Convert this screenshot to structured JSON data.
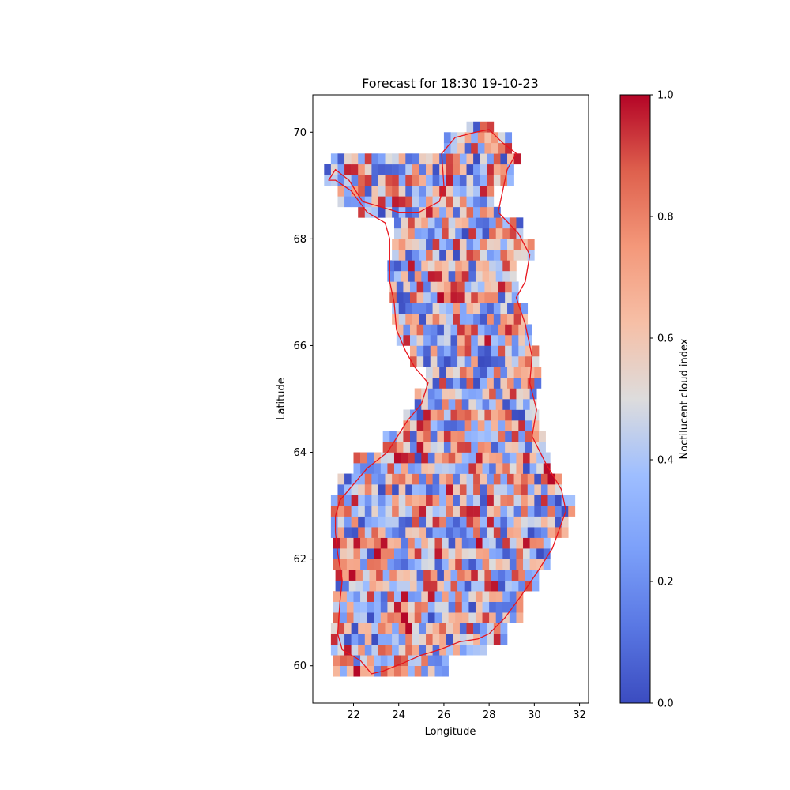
{
  "chart_data": {
    "type": "heatmap",
    "title": "Forecast for 18:30 19-10-23",
    "xlabel": "Longitude",
    "ylabel": "Latitude",
    "xlim": [
      20.2,
      32.4
    ],
    "ylim": [
      59.3,
      70.7
    ],
    "xticks": [
      22,
      24,
      26,
      28,
      30,
      32
    ],
    "yticks": [
      60,
      62,
      64,
      66,
      68,
      70
    ],
    "colorbar": {
      "label": "Noctilucent cloud index",
      "colormap": "coolwarm",
      "range": [
        0.0,
        1.0
      ],
      "ticks": [
        "0.0",
        "0.2",
        "0.4",
        "0.6",
        "0.8",
        "1.0"
      ]
    },
    "grid_step_deg": {
      "lon": 0.3,
      "lat": 0.2
    },
    "value_note": "Random-looking cell values between 0 and 1 across Finland",
    "outline": "Finland border (red)",
    "outline_color": "#e8141c",
    "region_lat_bands": [
      {
        "lat": [
          59.8,
          60.1
        ],
        "lon": [
          21.1,
          26.0
        ]
      },
      {
        "lat": [
          60.1,
          60.4
        ],
        "lon": [
          21.0,
          27.8
        ]
      },
      {
        "lat": [
          60.4,
          60.8
        ],
        "lon": [
          21.0,
          28.6
        ]
      },
      {
        "lat": [
          60.8,
          61.3
        ],
        "lon": [
          21.1,
          29.4
        ]
      },
      {
        "lat": [
          61.3,
          61.8
        ],
        "lon": [
          21.2,
          30.0
        ]
      },
      {
        "lat": [
          61.8,
          62.3
        ],
        "lon": [
          21.1,
          30.6
        ]
      },
      {
        "lat": [
          62.3,
          62.7
        ],
        "lon": [
          21.0,
          31.3
        ]
      },
      {
        "lat": [
          62.7,
          63.1
        ],
        "lon": [
          21.0,
          31.7
        ]
      },
      {
        "lat": [
          63.1,
          63.5
        ],
        "lon": [
          21.3,
          31.2
        ]
      },
      {
        "lat": [
          63.5,
          63.9
        ],
        "lon": [
          22.0,
          30.6
        ]
      },
      {
        "lat": [
          63.9,
          64.3
        ],
        "lon": [
          23.3,
          30.4
        ]
      },
      {
        "lat": [
          64.3,
          64.7
        ],
        "lon": [
          24.2,
          30.2
        ]
      },
      {
        "lat": [
          64.7,
          65.1
        ],
        "lon": [
          24.7,
          30.1
        ]
      },
      {
        "lat": [
          65.1,
          65.5
        ],
        "lon": [
          25.2,
          30.1
        ]
      },
      {
        "lat": [
          65.5,
          65.9
        ],
        "lon": [
          24.5,
          30.1
        ]
      },
      {
        "lat": [
          65.9,
          66.3
        ],
        "lon": [
          23.9,
          29.9
        ]
      },
      {
        "lat": [
          66.3,
          66.7
        ],
        "lon": [
          23.7,
          29.6
        ]
      },
      {
        "lat": [
          66.7,
          67.1
        ],
        "lon": [
          23.6,
          29.3
        ]
      },
      {
        "lat": [
          67.1,
          67.5
        ],
        "lon": [
          23.5,
          29.2
        ]
      },
      {
        "lat": [
          67.5,
          67.9
        ],
        "lon": [
          23.7,
          29.9
        ]
      },
      {
        "lat": [
          67.9,
          68.3
        ],
        "lon": [
          23.8,
          29.4
        ]
      },
      {
        "lat": [
          68.3,
          68.6
        ],
        "lon": [
          22.2,
          28.5
        ]
      },
      {
        "lat": [
          68.6,
          68.9
        ],
        "lon": [
          21.3,
          28.2
        ]
      },
      {
        "lat": [
          68.9,
          69.3
        ],
        "lon": [
          20.7,
          28.9
        ]
      },
      {
        "lat": [
          69.3,
          69.6
        ],
        "lon": [
          21.0,
          29.2
        ]
      },
      {
        "lat": [
          69.6,
          69.9
        ],
        "lon": [
          26.0,
          28.9
        ]
      },
      {
        "lat": [
          69.9,
          70.1
        ],
        "lon": [
          27.0,
          28.2
        ]
      }
    ]
  }
}
